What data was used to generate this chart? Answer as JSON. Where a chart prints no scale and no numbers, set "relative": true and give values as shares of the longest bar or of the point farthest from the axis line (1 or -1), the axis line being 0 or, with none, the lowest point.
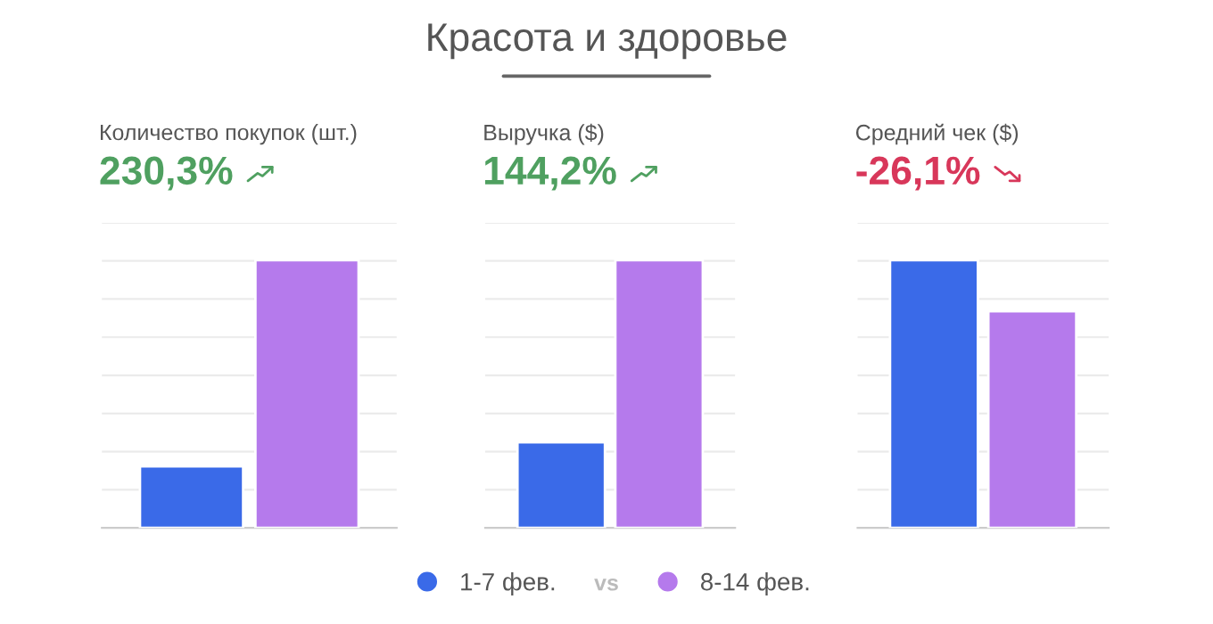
{
  "chart_data": [
    {
      "type": "bar",
      "subtitle": "Количество покупок (шт.)",
      "annotations": [
        "230,3%"
      ],
      "categories": [
        null
      ],
      "relative": true,
      "grid": "y",
      "series": [
        {
          "color": "#3a6ae8",
          "values": [
            0.23
          ]
        },
        {
          "color": "#b57aec",
          "values": [
            1
          ]
        }
      ]
    },
    {
      "type": "bar",
      "title": "Красота и здоровье",
      "subtitle": "Выручка ($)",
      "annotations": [
        "144,2%",
        "vs"
      ],
      "categories": [
        null
      ],
      "relative": true,
      "grid": "y",
      "legend": "bottom",
      "series": [
        {
          "name": "1-7 фев.",
          "color": "#3a6ae8",
          "values": [
            0.32
          ]
        },
        {
          "name": "8-14 фев.",
          "color": "#b57aec",
          "values": [
            1
          ]
        }
      ]
    },
    {
      "type": "bar",
      "subtitle": "Средний чек ($)",
      "annotations": [
        "-26,1%"
      ],
      "categories": [
        null
      ],
      "relative": true,
      "grid": "y",
      "series": [
        {
          "color": "#3a6ae8",
          "values": [
            1
          ]
        },
        {
          "color": "#b57aec",
          "values": [
            0.81
          ]
        }
      ]
    }
  ]
}
